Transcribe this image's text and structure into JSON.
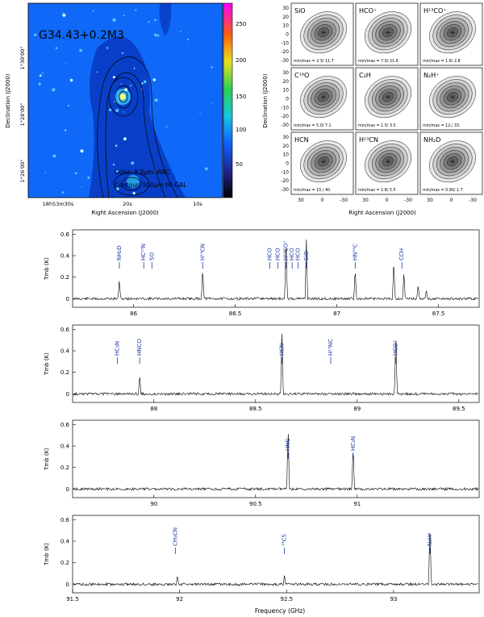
{
  "image_panel": {
    "source": "G34.43+0.2M3",
    "colorbar_ticks": [
      "250",
      "200",
      "150",
      "100",
      "50"
    ],
    "dec_label": "Declination (J2000)",
    "ra_label": "Right Ascension (J2000)",
    "dec_ticks": [
      "1°30'00\"",
      "1°28'00\"",
      "1°26'00\""
    ],
    "ra_ticks": [
      "18h53m30s",
      "20s",
      "10s"
    ],
    "legend_1": "Color: 8.0μm IRAC",
    "legend_2": "Contour: 500μm HI-GAL"
  },
  "map_grid": {
    "ylabel": "Declination (J2000)",
    "xlabel": "Right Ascension (J2000)",
    "y_ticks": [
      "30",
      "20",
      "10",
      "0",
      "-10",
      "-20",
      "-30"
    ],
    "x_ticks": [
      "30",
      "0",
      "-30"
    ],
    "panels": [
      {
        "molecule": "SiO",
        "minmax": "min/max = 2.3/ 11.7"
      },
      {
        "molecule": "HCO⁺",
        "minmax": "min/max = 7.0/ 21.6"
      },
      {
        "molecule": "H¹³CO⁺",
        "minmax": "min/max = 1.6/ 2.8"
      },
      {
        "molecule": "C¹⁸O",
        "minmax": "min/max = 5.0/ 7.1"
      },
      {
        "molecule": "C₂H",
        "minmax": "min/max = 1.5/ 3.5"
      },
      {
        "molecule": "N₂H⁺",
        "minmax": "min/max = 12./ 33."
      },
      {
        "molecule": "HCN",
        "minmax": "min/max = 15./ 40."
      },
      {
        "molecule": "H¹³CN",
        "minmax": "min/max = 1.8/ 5.5"
      },
      {
        "molecule": "NH₂D",
        "minmax": "min/max = 0.90/ 1.7"
      }
    ]
  },
  "spectra": {
    "ylabel": "Tmb (K)",
    "xlabel": "Frequency (GHz)",
    "y_ticks": [
      "0.6",
      "0.4",
      "0.2",
      "0"
    ],
    "chart_data": [
      {
        "type": "line",
        "xlim": [
          85.7,
          87.7
        ],
        "ylim": [
          -0.08,
          0.64
        ],
        "x_ticks": [
          "86",
          "86.5",
          "87",
          "87.5"
        ],
        "lines": [
          {
            "label": "NH₂D",
            "x": 85.93
          },
          {
            "label": "HC¹⁵N",
            "x": 86.05
          },
          {
            "label": "SO",
            "x": 86.09
          },
          {
            "label": "H¹³CN",
            "x": 86.34
          },
          {
            "label": "HCO",
            "x": 86.67
          },
          {
            "label": "HCO",
            "x": 86.71
          },
          {
            "label": "H¹³CO⁺",
            "x": 86.75
          },
          {
            "label": "HCO",
            "x": 86.78
          },
          {
            "label": "HCO",
            "x": 86.81
          },
          {
            "label": "SiO",
            "x": 86.85
          },
          {
            "label": "HN¹³C",
            "x": 87.09
          },
          {
            "label": "CCH",
            "x": 87.32
          }
        ],
        "peaks": [
          {
            "x": 85.93,
            "y": 0.18
          },
          {
            "x": 86.34,
            "y": 0.29
          },
          {
            "x": 86.75,
            "y": 0.62
          },
          {
            "x": 86.85,
            "y": 0.55
          },
          {
            "x": 87.09,
            "y": 0.29
          },
          {
            "x": 87.28,
            "y": 0.38
          },
          {
            "x": 87.33,
            "y": 0.25
          },
          {
            "x": 87.4,
            "y": 0.13
          },
          {
            "x": 87.44,
            "y": 0.08
          }
        ]
      },
      {
        "type": "line",
        "xlim": [
          87.6,
          89.6
        ],
        "ylim": [
          -0.08,
          0.64
        ],
        "x_ticks": [
          "88",
          "88.5",
          "89",
          "89.5"
        ],
        "lines": [
          {
            "label": "HC₃N",
            "x": 87.82
          },
          {
            "label": "HNCO",
            "x": 87.93
          },
          {
            "label": "HCN",
            "x": 88.63
          },
          {
            "label": "H¹⁵NC",
            "x": 88.87
          },
          {
            "label": "HCO⁺",
            "x": 89.19
          }
        ],
        "peaks": [
          {
            "x": 87.93,
            "y": 0.18
          },
          {
            "x": 88.63,
            "y": 0.62
          },
          {
            "x": 89.19,
            "y": 0.62
          }
        ]
      },
      {
        "type": "line",
        "xlim": [
          89.6,
          91.6
        ],
        "ylim": [
          -0.08,
          0.64
        ],
        "x_ticks": [
          "90",
          "90.5",
          "91"
        ],
        "lines": [
          {
            "label": "HNC",
            "x": 90.66
          },
          {
            "label": "HC₃N",
            "x": 90.98
          }
        ],
        "peaks": [
          {
            "x": 90.66,
            "y": 0.62
          },
          {
            "x": 90.98,
            "y": 0.42
          }
        ]
      },
      {
        "type": "line",
        "xlim": [
          91.5,
          93.4
        ],
        "ylim": [
          -0.08,
          0.64
        ],
        "x_ticks": [
          "91.5",
          "92",
          "92.5",
          "93"
        ],
        "lines": [
          {
            "label": "CH₃CN",
            "x": 91.98
          },
          {
            "label": "¹³CS",
            "x": 92.49
          },
          {
            "label": "N₂H⁺",
            "x": 93.17
          }
        ],
        "peaks": [
          {
            "x": 91.99,
            "y": 0.08
          },
          {
            "x": 92.49,
            "y": 0.08
          },
          {
            "x": 93.17,
            "y": 0.62
          }
        ]
      }
    ]
  }
}
